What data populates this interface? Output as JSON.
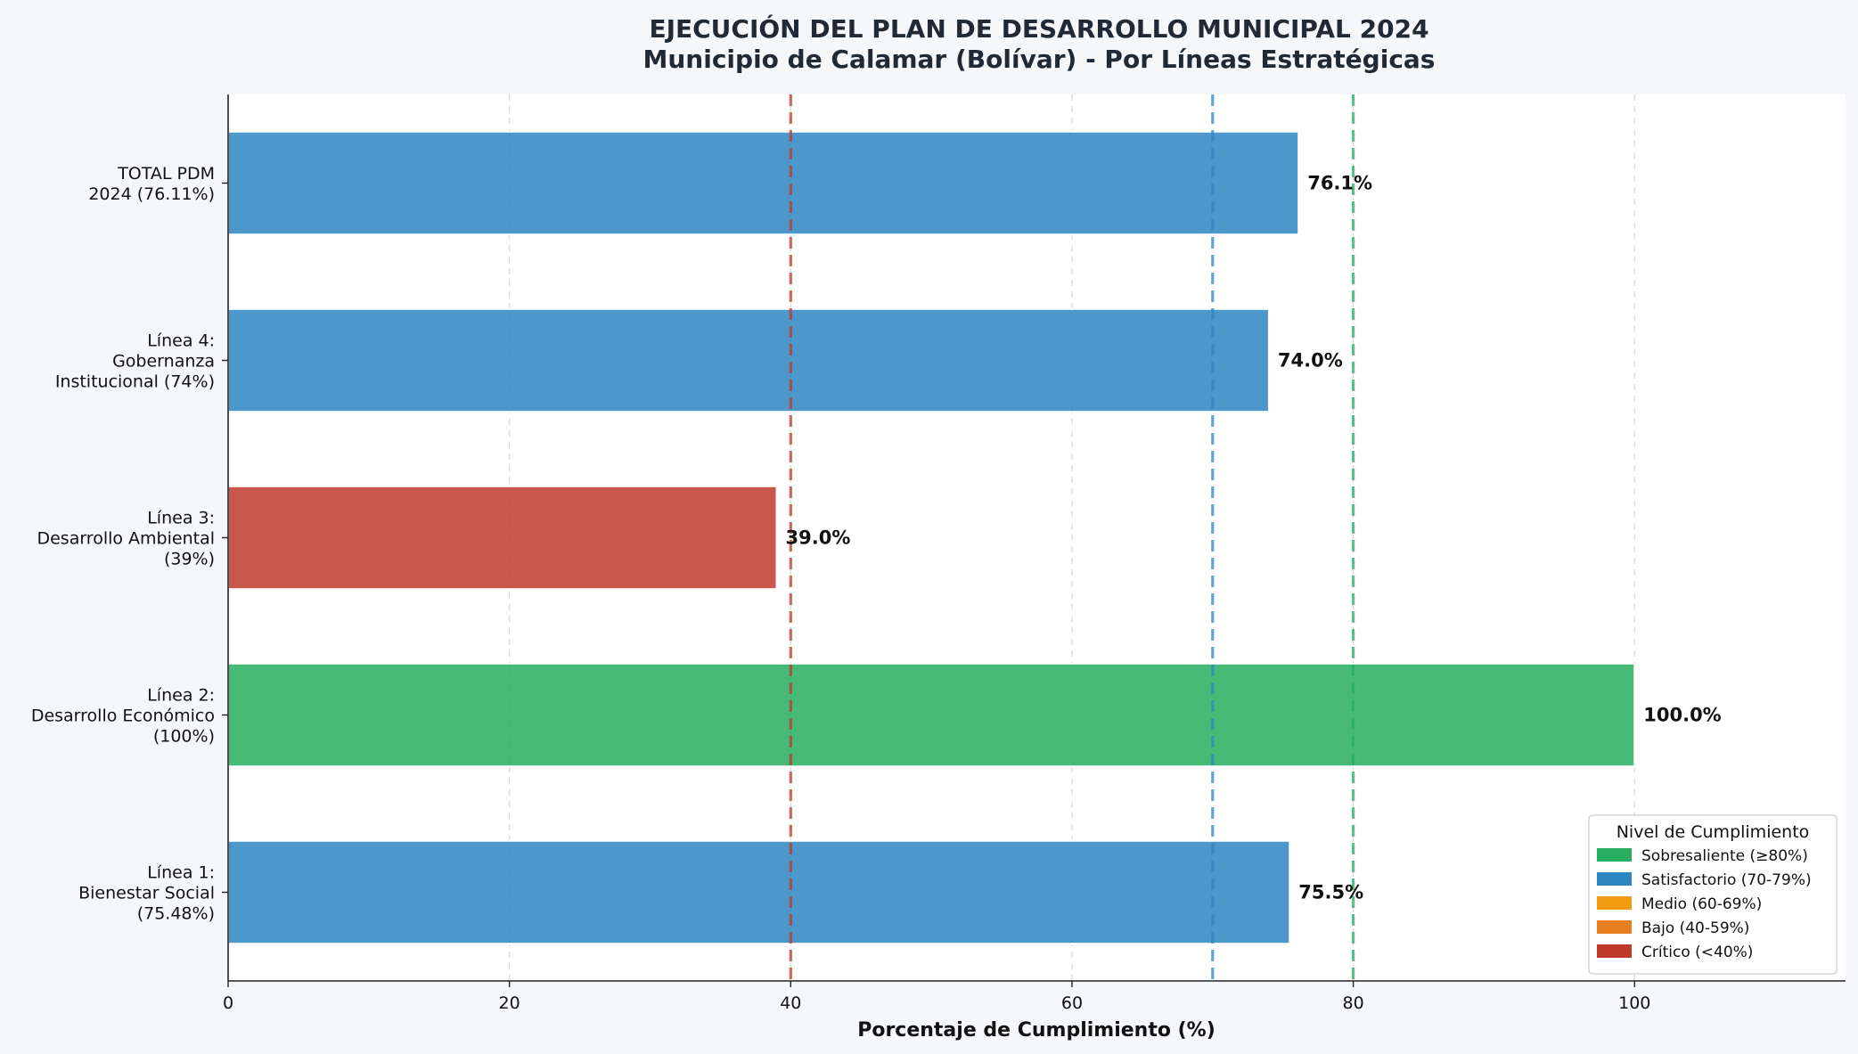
{
  "chart_data": {
    "type": "bar",
    "orientation": "horizontal",
    "title": "EJECUCIÓN DEL PLAN DE DESARROLLO MUNICIPAL 2024",
    "subtitle": "Municipio de Calamar (Bolívar) - Por Líneas Estratégicas",
    "xlabel": "Porcentaje de Cumplimiento (%)",
    "ylabel": "",
    "xlim": [
      0,
      115
    ],
    "xticks": [
      0,
      20,
      40,
      60,
      80,
      100
    ],
    "grid": "x",
    "categories": [
      {
        "lines": [
          "Línea 1:",
          "Bienestar Social",
          "(75.48%)"
        ],
        "value": 75.48,
        "label": "75.5%",
        "color": "#2e86c1"
      },
      {
        "lines": [
          "Línea 2:",
          "Desarrollo Económico",
          "(100%)"
        ],
        "value": 100,
        "label": "100.0%",
        "color": "#27ae60"
      },
      {
        "lines": [
          "Línea 3:",
          "Desarrollo Ambiental",
          "(39%)"
        ],
        "value": 39,
        "label": "39.0%",
        "color": "#c0392b"
      },
      {
        "lines": [
          "Línea 4:",
          "Gobernanza",
          "Institucional (74%)"
        ],
        "value": 74,
        "label": "74.0%",
        "color": "#2e86c1"
      },
      {
        "lines": [
          "TOTAL PDM",
          "2024 (76.11%)"
        ],
        "value": 76.11,
        "label": "76.1%",
        "color": "#2e86c1"
      }
    ],
    "reference_lines": [
      {
        "value": 40,
        "color": "#c0392b"
      },
      {
        "value": 70,
        "color": "#2e86c1"
      },
      {
        "value": 80,
        "color": "#27ae60"
      }
    ],
    "legend": {
      "title": "Nivel de Cumplimiento",
      "placement": "lower-right",
      "items": [
        {
          "label": "Sobresaliente (≥80%)",
          "color": "#27ae60"
        },
        {
          "label": "Satisfactorio (70-79%)",
          "color": "#2e86c1"
        },
        {
          "label": "Medio (60-69%)",
          "color": "#f39c12"
        },
        {
          "label": "Bajo (40-59%)",
          "color": "#e67e22"
        },
        {
          "label": "Crítico (<40%)",
          "color": "#c0392b"
        }
      ]
    }
  }
}
